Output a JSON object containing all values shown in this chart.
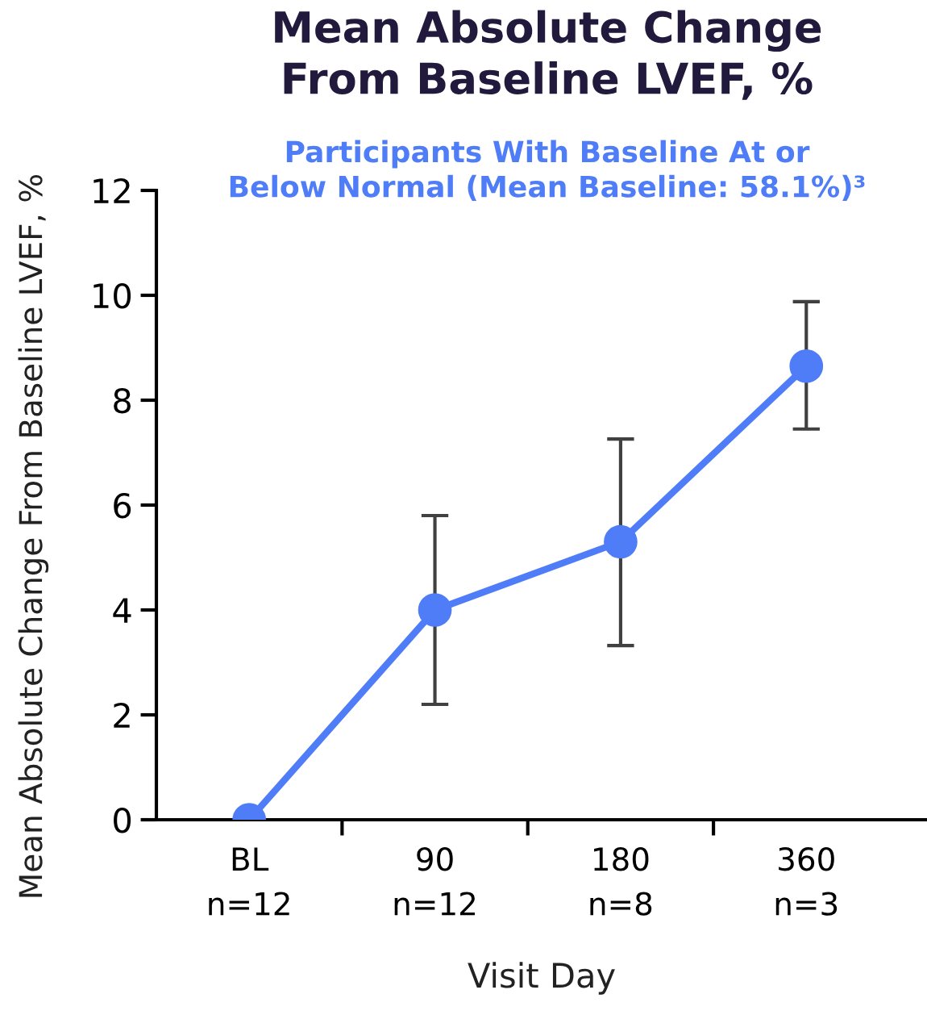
{
  "chart_data": {
    "type": "line",
    "title": "Mean Absolute Change\nFrom Baseline LVEF, %",
    "subtitle": "Participants With Baseline At or\nBelow Normal (Mean Baseline: 58.1%)³",
    "xlabel": "Visit Day",
    "ylabel": "Mean Absolute Change From Baseline LVEF, %",
    "categories": [
      "BL\nn=12",
      "90\nn=12",
      "180\nn=8",
      "360\nn=3"
    ],
    "series": [
      {
        "color": "#4f7cf7",
        "values": [
          0,
          4.0,
          5.3,
          8.65
        ],
        "errors": [
          null,
          [
            2.2,
            5.8
          ],
          [
            3.32,
            7.26
          ],
          [
            7.45,
            9.88
          ]
        ]
      }
    ],
    "ylim": [
      0,
      12
    ],
    "yticks": [
      0,
      2,
      4,
      6,
      8,
      10,
      12
    ],
    "marker": "circle",
    "line_style": "solid",
    "grid": false,
    "legend": false
  }
}
